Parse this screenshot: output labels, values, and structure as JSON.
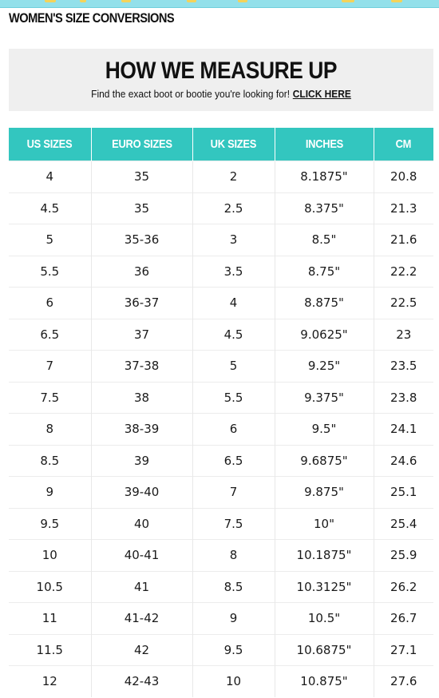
{
  "page": {
    "heading": "WOMEN'S SIZE CONVERSIONS"
  },
  "colors": {
    "header_teal": "#33c6bf",
    "top_strip": "#93e0ea",
    "promo_bg": "#efefef"
  },
  "promo": {
    "title": "HOW WE MEASURE UP",
    "subtitle": "Find the exact boot or bootie you're looking for!",
    "link_label": "CLICK HERE"
  },
  "table": {
    "headers": [
      "US SIZES",
      "EURO SIZES",
      "UK SIZES",
      "INCHES",
      "CM"
    ],
    "rows": [
      [
        "4",
        "35",
        "2",
        "8.1875\"",
        "20.8"
      ],
      [
        "4.5",
        "35",
        "2.5",
        "8.375\"",
        "21.3"
      ],
      [
        "5",
        "35-36",
        "3",
        "8.5\"",
        "21.6"
      ],
      [
        "5.5",
        "36",
        "3.5",
        "8.75\"",
        "22.2"
      ],
      [
        "6",
        "36-37",
        "4",
        "8.875\"",
        "22.5"
      ],
      [
        "6.5",
        "37",
        "4.5",
        "9.0625\"",
        "23"
      ],
      [
        "7",
        "37-38",
        "5",
        "9.25\"",
        "23.5"
      ],
      [
        "7.5",
        "38",
        "5.5",
        "9.375\"",
        "23.8"
      ],
      [
        "8",
        "38-39",
        "6",
        "9.5\"",
        "24.1"
      ],
      [
        "8.5",
        "39",
        "6.5",
        "9.6875\"",
        "24.6"
      ],
      [
        "9",
        "39-40",
        "7",
        "9.875\"",
        "25.1"
      ],
      [
        "9.5",
        "40",
        "7.5",
        "10\"",
        "25.4"
      ],
      [
        "10",
        "40-41",
        "8",
        "10.1875\"",
        "25.9"
      ],
      [
        "10.5",
        "41",
        "8.5",
        "10.3125\"",
        "26.2"
      ],
      [
        "11",
        "41-42",
        "9",
        "10.5\"",
        "26.7"
      ],
      [
        "11.5",
        "42",
        "9.5",
        "10.6875\"",
        "27.1"
      ],
      [
        "12",
        "42-43",
        "10",
        "10.875\"",
        "27.6"
      ]
    ]
  }
}
